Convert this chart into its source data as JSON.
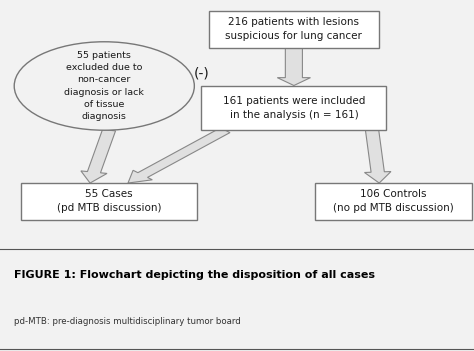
{
  "title": "FIGURE 1: Flowchart depicting the disposition of all cases",
  "subtitle": "pd-MTB: pre-diagnosis multidisciplinary tumor board",
  "box1_text": "216 patients with lesions\nsuspicious for lung cancer",
  "box2_text": "161 patients were included\nin the analysis (n = 161)",
  "box3_text": "55 Cases\n(pd MTB discussion)",
  "box4_text": "106 Controls\n(no pd MTB discussion)",
  "circle_text": "55 patients\nexcluded due to\nnon-cancer\ndiagnosis or lack\nof tissue\ndiagnosis",
  "minus_text": "(-)",
  "bg_color": "#f2f2f2",
  "box_color": "#ffffff",
  "box_edge": "#777777",
  "arrow_face": "#e0e0e0",
  "arrow_edge": "#888888",
  "text_color": "#1a1a1a",
  "title_color": "#000000",
  "caption_bg": "#e0e0e0"
}
